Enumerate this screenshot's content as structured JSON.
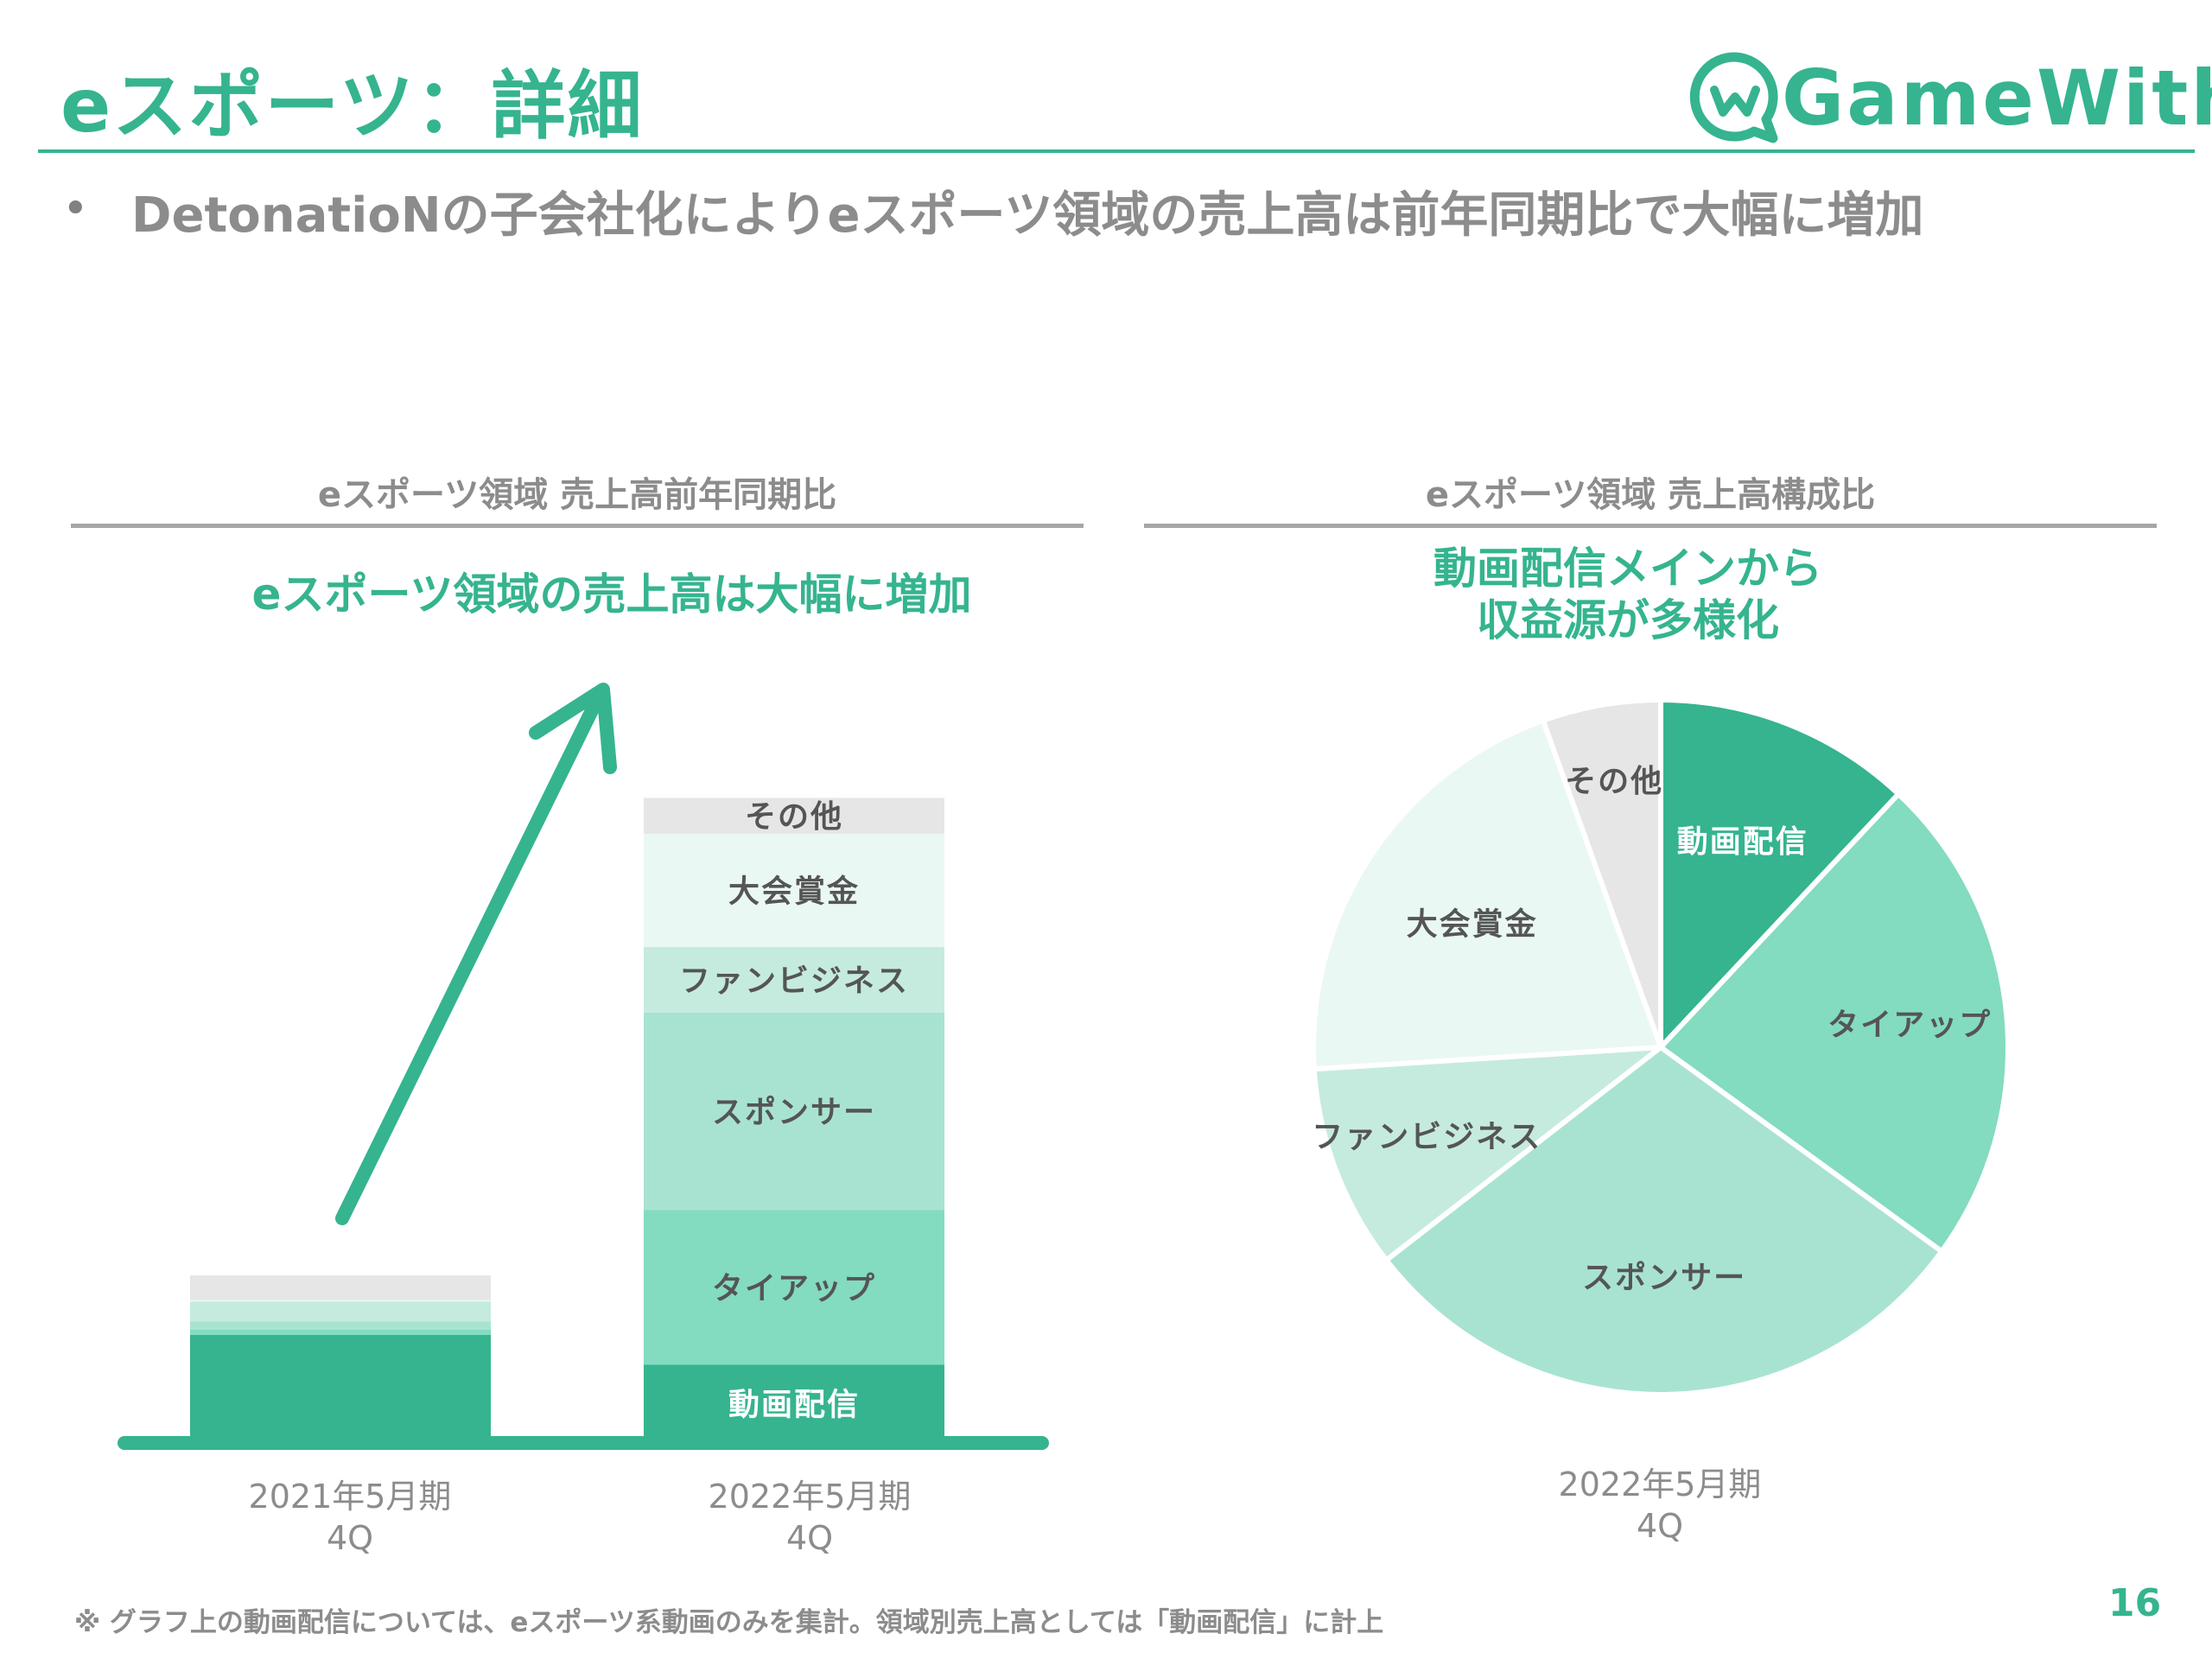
{
  "header": {
    "title": "eスポーツ：詳細",
    "logo_text": "GameWith"
  },
  "bullet": {
    "marker": "•",
    "text": "DetonatioNの子会社化によりeスポーツ領域の売上高は前年同期比で大幅に増加"
  },
  "left_panel": {
    "section_title": "eスポーツ領域 売上高前年同期比",
    "headline": "eスポーツ領域の売上高は大幅に増加",
    "x_labels": [
      {
        "period": "2021年5月期",
        "quarter": "4Q"
      },
      {
        "period": "2022年5月期",
        "quarter": "4Q"
      }
    ]
  },
  "right_panel": {
    "section_title": "eスポーツ領域 売上高構成比",
    "headline_line1": "動画配信メインから",
    "headline_line2": "収益源が多様化",
    "x_label": {
      "period": "2022年5月期",
      "quarter": "4Q"
    }
  },
  "chart_data": [
    {
      "type": "bar",
      "stacked": true,
      "title": "eスポーツ領域 売上高前年同期比",
      "categories": [
        "2021年5月期 4Q",
        "2022年5月期 4Q"
      ],
      "series": [
        {
          "name": "動画配信",
          "color": "#35b48f",
          "values": [
            14.5,
            10.5
          ]
        },
        {
          "name": "タイアップ",
          "color": "#83dbc0",
          "values": [
            0.7,
            20.8
          ]
        },
        {
          "name": "スポンサー",
          "color": "#a8e3d1",
          "values": [
            1.1,
            26.5
          ]
        },
        {
          "name": "ファンビジネス",
          "color": "#c5ebde",
          "values": [
            2.7,
            8.8
          ]
        },
        {
          "name": "大会賞金",
          "color": "#eaf8f3",
          "values": [
            0.2,
            15.2
          ]
        },
        {
          "name": "その他",
          "color": "#e6e6e6",
          "values": [
            3.3,
            4.8
          ]
        }
      ],
      "units": "relative (axis not shown)",
      "ylim": [
        0,
        100
      ],
      "annotation": "increase arrow from 2021 bar to 2022 bar"
    },
    {
      "type": "pie",
      "title": "eスポーツ領域 売上高構成比",
      "start": "12 o'clock, clockwise",
      "slices": [
        {
          "label": "動画配信",
          "value": 12,
          "color": "#35b48f",
          "label_color": "#ffffff"
        },
        {
          "label": "タイアップ",
          "value": 23,
          "color": "#83dbc0",
          "label_color": "#555555"
        },
        {
          "label": "スポンサー",
          "value": 29.5,
          "color": "#a8e3d1",
          "label_color": "#555555"
        },
        {
          "label": "ファンビジネス",
          "value": 9.5,
          "color": "#c5ebde",
          "label_color": "#555555"
        },
        {
          "label": "大会賞金",
          "value": 20.5,
          "color": "#eaf8f3",
          "label_color": "#555555"
        },
        {
          "label": "その他",
          "value": 5.5,
          "color": "#e6e6e6",
          "label_color": "#555555"
        }
      ]
    }
  ],
  "footer": {
    "note": "※ グラフ上の動画配信については、eスポーツ系動画のみを集計。領域別売上高としては「動画配信」に計上",
    "page_number": "16"
  },
  "colors": {
    "brand": "#35b48f",
    "muted_text": "#8c8c8c"
  }
}
